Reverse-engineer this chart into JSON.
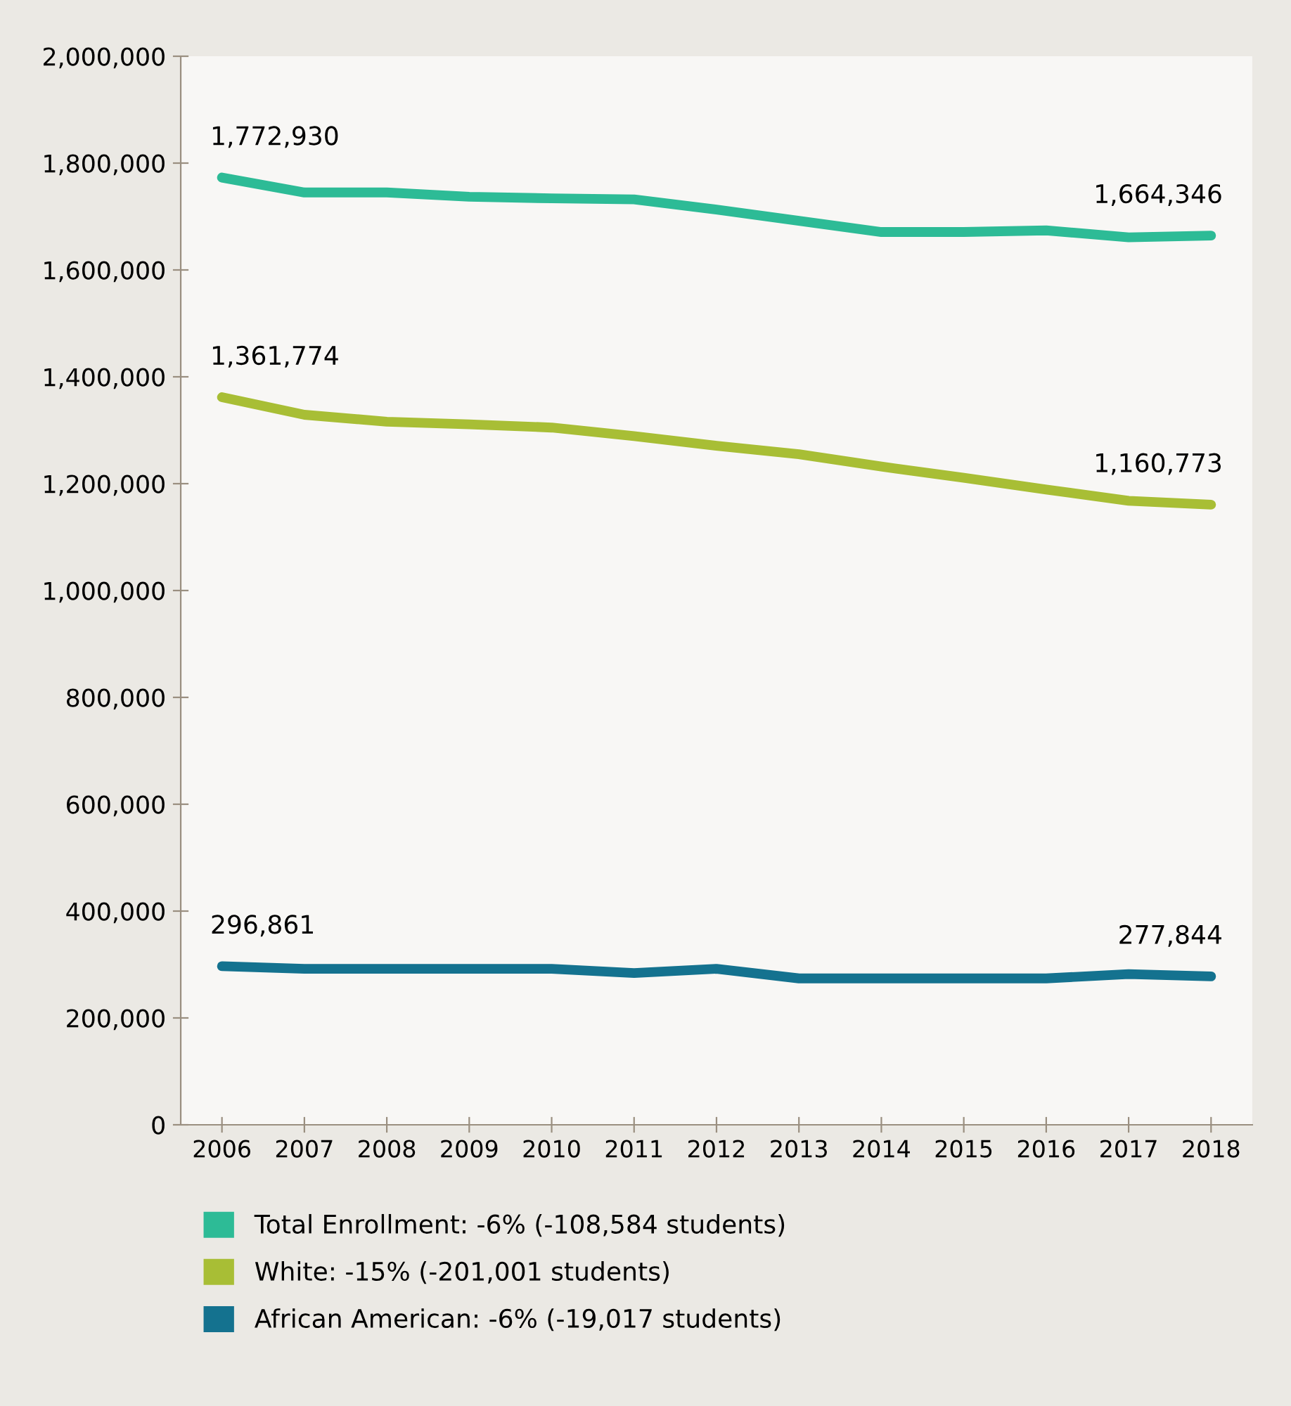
{
  "chart_data": {
    "type": "line",
    "categories": [
      "2006",
      "2007",
      "2008",
      "2009",
      "2010",
      "2011",
      "2012",
      "2013",
      "2014",
      "2015",
      "2016",
      "2017",
      "2018"
    ],
    "series": [
      {
        "name": "Total Enrollment: -6% (-108,584 students)",
        "color": "#2dbb96",
        "values": [
          1772930,
          1745000,
          1745000,
          1737000,
          1734000,
          1732000,
          1713000,
          1692000,
          1671000,
          1671000,
          1674000,
          1661000,
          1664346
        ],
        "value_labels": [
          "1,772,930",
          null,
          null,
          null,
          null,
          null,
          null,
          null,
          null,
          null,
          null,
          null,
          "1,664,346"
        ]
      },
      {
        "name": "White: -15% (-201,001 students)",
        "color": "#a8be35",
        "values": [
          1361774,
          1329000,
          1316000,
          1311000,
          1305000,
          1289000,
          1271000,
          1255000,
          1232000,
          1211000,
          1189000,
          1168000,
          1160773
        ],
        "value_labels": [
          "1,361,774",
          null,
          null,
          null,
          null,
          null,
          null,
          null,
          null,
          null,
          null,
          null,
          "1,160,773"
        ]
      },
      {
        "name": "African American: -6% (-19,017 students)",
        "color": "#14728f",
        "values": [
          296861,
          292000,
          292000,
          292000,
          292000,
          284000,
          292000,
          274000,
          274000,
          274000,
          274000,
          282000,
          277844
        ],
        "value_labels": [
          "296,861",
          null,
          null,
          null,
          null,
          null,
          null,
          null,
          null,
          null,
          null,
          null,
          "277,844"
        ]
      }
    ],
    "ylim": [
      0,
      2000000
    ],
    "yticks": [
      {
        "value": 0,
        "label": "0"
      },
      {
        "value": 200000,
        "label": "200,000"
      },
      {
        "value": 400000,
        "label": "400,000"
      },
      {
        "value": 600000,
        "label": "600,000"
      },
      {
        "value": 800000,
        "label": "800,000"
      },
      {
        "value": 1000000,
        "label": "1,000,000"
      },
      {
        "value": 1200000,
        "label": "1,200,000"
      },
      {
        "value": 1400000,
        "label": "1,400,000"
      },
      {
        "value": 1600000,
        "label": "1,600,000"
      },
      {
        "value": 1800000,
        "label": "1,800,000"
      },
      {
        "value": 2000000,
        "label": "2,000,000"
      }
    ],
    "grid": false,
    "legend": "bottom",
    "marker": "none",
    "line_style": "solid"
  }
}
